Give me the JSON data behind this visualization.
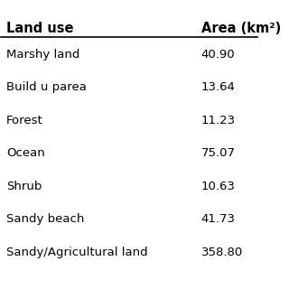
{
  "col1_header": "Land use",
  "col2_header": "Area (km²)",
  "rows": [
    [
      "Marshy land",
      "40.90"
    ],
    [
      "Build u parea",
      "13.64"
    ],
    [
      "Forest",
      "11.23"
    ],
    [
      "Ocean",
      "75.07"
    ],
    [
      "Shrub",
      "10.63"
    ],
    [
      "Sandy beach",
      "41.73"
    ],
    [
      "Sandy/Agricultural land",
      "358.80"
    ]
  ],
  "background_color": "#ffffff",
  "header_line_color": "#000000",
  "text_color": "#000000",
  "font_size": 9.5,
  "header_font_size": 10.5
}
